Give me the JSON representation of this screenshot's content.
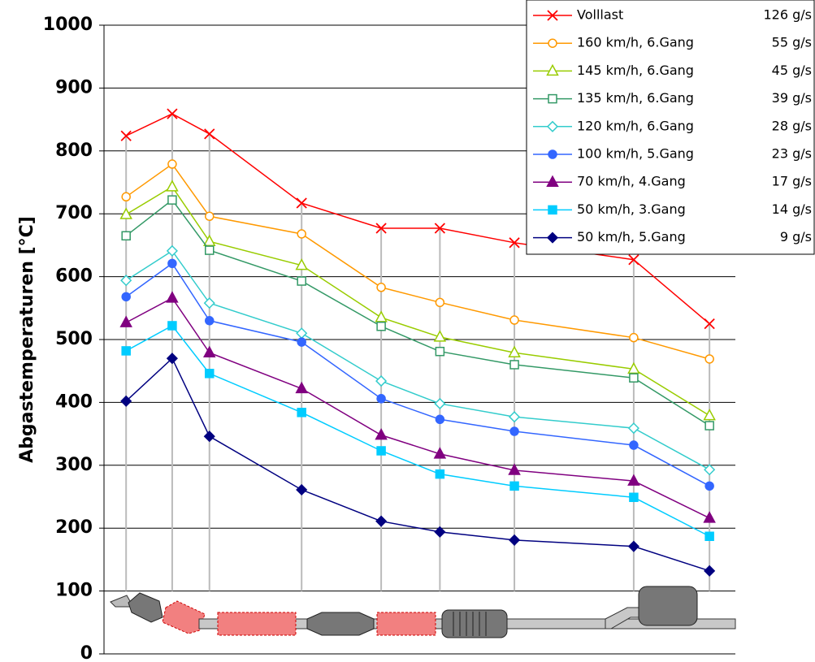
{
  "chart_data": {
    "type": "line",
    "y_label": "Abgastemperaturen [°C]",
    "x": [
      3.5,
      10.8,
      16.7,
      31.3,
      43.9,
      53.2,
      65,
      83.9,
      95.9
    ],
    "xlim": [
      0,
      100
    ],
    "ylim": [
      0,
      1000
    ],
    "yticks": [
      0,
      100,
      200,
      300,
      400,
      500,
      600,
      700,
      800,
      900,
      1000
    ],
    "grid": true,
    "drop_lines": true,
    "legend": "top-right",
    "series": [
      {
        "name": "Volllast",
        "flow": "126 g/s",
        "color": "#ff0000",
        "marker": "x",
        "filled": false,
        "values": [
          824,
          859,
          827,
          717,
          677,
          677,
          654,
          627,
          525
        ]
      },
      {
        "name": "160 km/h, 6.Gang",
        "flow": "55 g/s",
        "color": "#ff9900",
        "marker": "circle",
        "filled": false,
        "values": [
          727,
          779,
          696,
          668,
          583,
          559,
          531,
          503,
          469
        ]
      },
      {
        "name": "145 km/h, 6.Gang",
        "flow": "45 g/s",
        "color": "#99cc00",
        "marker": "triangle",
        "filled": false,
        "values": [
          699,
          743,
          656,
          618,
          535,
          504,
          479,
          453,
          379
        ]
      },
      {
        "name": "135 km/h, 6.Gang",
        "flow": "39 g/s",
        "color": "#339966",
        "marker": "square",
        "filled": false,
        "values": [
          665,
          722,
          642,
          593,
          521,
          481,
          460,
          439,
          363
        ]
      },
      {
        "name": "120 km/h, 6.Gang",
        "flow": "28 g/s",
        "color": "#33cccc",
        "marker": "diamond",
        "filled": false,
        "values": [
          594,
          641,
          558,
          510,
          434,
          398,
          377,
          359,
          293
        ]
      },
      {
        "name": "100 km/h, 5.Gang",
        "flow": "23 g/s",
        "color": "#3366ff",
        "marker": "circle",
        "filled": true,
        "values": [
          568,
          621,
          530,
          496,
          406,
          373,
          354,
          332,
          267
        ]
      },
      {
        "name": "70 km/h, 4.Gang",
        "flow": "17 g/s",
        "color": "#800080",
        "marker": "triangle",
        "filled": true,
        "values": [
          527,
          566,
          479,
          422,
          348,
          318,
          292,
          275,
          216
        ]
      },
      {
        "name": "50 km/h, 3.Gang",
        "flow": "14 g/s",
        "color": "#00ccff",
        "marker": "square",
        "filled": true,
        "values": [
          482,
          522,
          446,
          384,
          323,
          286,
          267,
          249,
          187
        ]
      },
      {
        "name": "50 km/h, 5.Gang",
        "flow": "9 g/s",
        "color": "#000080",
        "marker": "diamond",
        "filled": true,
        "values": [
          402,
          470,
          346,
          261,
          211,
          194,
          181,
          171,
          132
        ]
      }
    ]
  }
}
